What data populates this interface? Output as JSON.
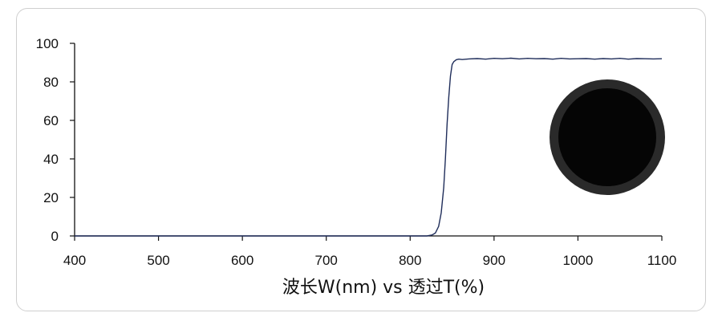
{
  "chart_data": {
    "type": "line",
    "xlabel": "波长W(nm) vs 透过T(%)",
    "ylabel": "",
    "xlim": [
      400,
      1100
    ],
    "ylim": [
      0,
      100
    ],
    "x_ticks": [
      400,
      500,
      600,
      700,
      800,
      900,
      1000,
      1100
    ],
    "y_ticks": [
      0,
      20,
      40,
      60,
      80,
      100
    ],
    "grid": false,
    "line_color": "#1f2d5a",
    "series": [
      {
        "x": [
          400,
          820,
          826,
          830,
          834,
          837,
          840,
          842,
          844,
          846,
          848,
          850,
          852,
          855,
          858,
          862,
          870,
          880,
          890,
          900,
          910,
          920,
          930,
          940,
          950,
          960,
          970,
          980,
          990,
          1000,
          1010,
          1020,
          1030,
          1040,
          1050,
          1060,
          1070,
          1080,
          1090,
          1100
        ],
        "y": [
          0,
          0,
          0.5,
          1.5,
          5,
          12,
          25,
          40,
          58,
          72,
          83,
          89,
          90.5,
          91.5,
          91.8,
          91.6,
          91.9,
          92.1,
          91.8,
          92.2,
          92.0,
          92.3,
          91.9,
          92.2,
          92.0,
          92.1,
          91.8,
          92.2,
          91.9,
          92.0,
          92.1,
          91.8,
          92.1,
          91.9,
          92.2,
          91.8,
          92.1,
          92.0,
          91.9,
          92.0
        ]
      }
    ]
  },
  "inset": {
    "icon": "filter-lens-icon",
    "outer_color": "#2a2a2a",
    "inner_color": "#050505"
  }
}
